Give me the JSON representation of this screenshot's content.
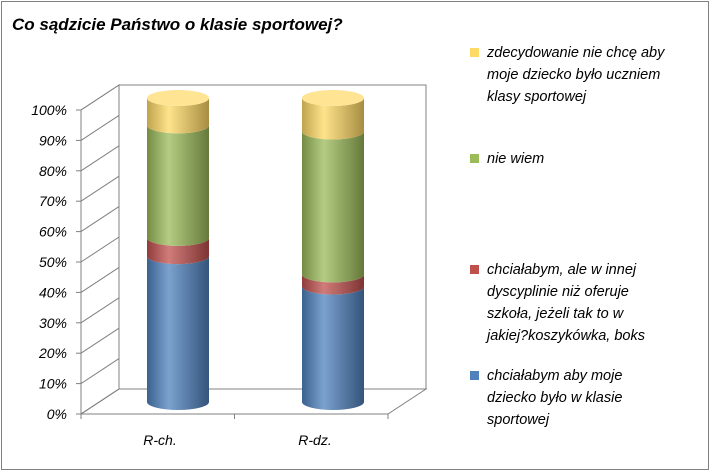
{
  "chart_data": {
    "type": "bar",
    "stacked": true,
    "style": "3d-cylinder",
    "title": "Co sądzicie Państwo o klasie sportowej?",
    "categories": [
      "R-ch.",
      "R-dz."
    ],
    "y_ticks": [
      "0%",
      "10%",
      "20%",
      "30%",
      "40%",
      "50%",
      "60%",
      "70%",
      "80%",
      "90%",
      "100%"
    ],
    "ylim": [
      0,
      100
    ],
    "grid": false,
    "legend_position": "right",
    "series": [
      {
        "name": "chciałabym aby moje dziecko było w klasie sportowej",
        "name_lines": [
          "chciałabym aby moje",
          "dziecko było w klasie",
          "sportowej"
        ],
        "color": "#4F81BD",
        "values": [
          48,
          38
        ]
      },
      {
        "name": "chciałabym, ale w innej dyscyplinie niż oferuje szkoła, jeżeli tak to w jakiej?koszykówka, boks",
        "name_lines": [
          "chciałabym, ale w innej",
          "dyscyplinie niż oferuje",
          "szkoła, jeżeli tak to w",
          "jakiej?koszykówka, boks"
        ],
        "color": "#C0504D",
        "values": [
          6,
          4
        ]
      },
      {
        "name": "nie wiem",
        "name_lines": [
          "nie wiem"
        ],
        "color": "#9BBB59",
        "values": [
          37,
          47
        ]
      },
      {
        "name": "zdecydowanie nie chcę aby moje dziecko było uczniem klasy sportowej",
        "name_lines": [
          "zdecydowanie nie chcę aby",
          "moje dziecko było uczniem",
          "klasy sportowej"
        ],
        "color": "#FFD966",
        "values": [
          9,
          11
        ]
      }
    ]
  }
}
